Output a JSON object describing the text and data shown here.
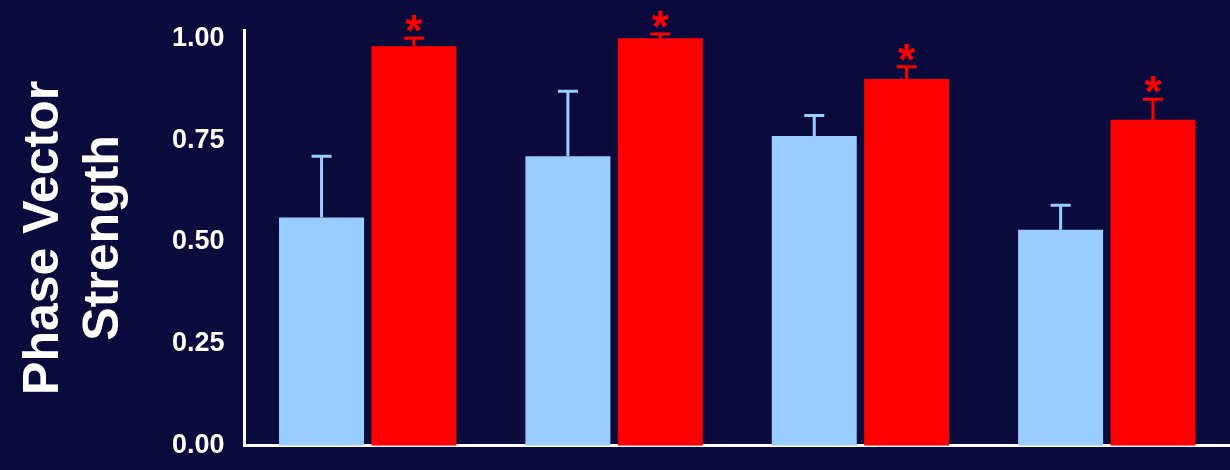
{
  "chart_data": {
    "type": "bar",
    "ylabel": "Phase Vector\nStrength",
    "categories": [
      null,
      null,
      null,
      null
    ],
    "series": [
      {
        "color": "#99ccff",
        "values": [
          0.56,
          0.71,
          0.76,
          0.53
        ],
        "errors": [
          [
            0.56,
            0.71
          ],
          [
            0.71,
            0.87
          ],
          [
            0.76,
            0.81
          ],
          [
            0.53,
            0.59
          ]
        ]
      },
      {
        "color": "#ff0000",
        "values": [
          0.98,
          1.0,
          0.9,
          0.8
        ],
        "errors": [
          [
            0.98,
            1.0
          ],
          [
            1.0,
            1.01
          ],
          [
            0.9,
            0.93
          ],
          [
            0.8,
            0.85
          ]
        ],
        "value_labels": [
          "*",
          "*",
          "*",
          "*"
        ]
      }
    ],
    "ylim": [
      0,
      1.02
    ],
    "yticks": [
      {
        "value": 0,
        "label": "0.00"
      },
      {
        "value": 0.25,
        "label": "0.25"
      },
      {
        "value": 0.5,
        "label": "0.50"
      },
      {
        "value": 0.75,
        "label": "0.75"
      },
      {
        "value": 1,
        "label": "1.00"
      }
    ],
    "tick_labels": "y",
    "grid": false,
    "legend": false
  }
}
